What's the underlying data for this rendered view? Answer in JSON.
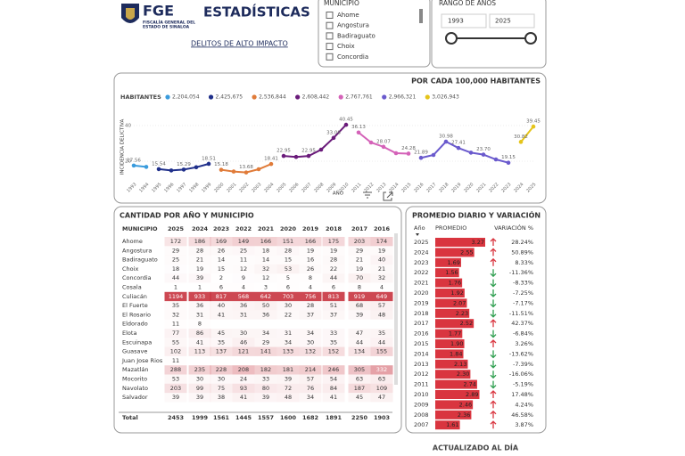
{
  "header": {
    "logo": "FGE",
    "logo_line1": "FISCALÍA GENERAL DEL",
    "logo_line2": "ESTADO DE SINALOA",
    "title": "ESTADÍSTICAS",
    "subtitle": "DELITOS DE ALTO IMPACTO"
  },
  "filters": {
    "municipio": {
      "label": "MUNICIPIO",
      "options": [
        "Ahome",
        "Angostura",
        "Badiraguato",
        "Choix",
        "Concordia"
      ]
    },
    "rango": {
      "label": "RANGO DE AÑOS",
      "from": "1993",
      "to": "2025"
    }
  },
  "chart_data": {
    "type": "line",
    "title": "POR CADA 100,000 HABITANTES",
    "legend_title": "HABITANTES",
    "ylabel": "INCIDENCIA DELICTIVA",
    "xlabel": "AÑO",
    "xlim": [
      1993,
      2025
    ],
    "xticks": [
      1993,
      1994,
      1995,
      1996,
      1997,
      1998,
      1999,
      2000,
      2001,
      2002,
      2003,
      2004,
      2005,
      2006,
      2007,
      2008,
      2009,
      2010,
      2011,
      2012,
      2013,
      2014,
      2015,
      2016,
      2017,
      2018,
      2019,
      2020,
      2021,
      2022,
      2023,
      2024,
      2025
    ],
    "ylim": [
      10,
      50
    ],
    "yticks": [
      20,
      40
    ],
    "grid": true,
    "series": [
      {
        "name": "2,204,054",
        "color": "#3a9bdc",
        "x": [
          1993,
          1994
        ],
        "values": [
          17.56,
          16.8
        ],
        "value_labels": [
          "17.56",
          null
        ]
      },
      {
        "name": "2,425,675",
        "color": "#1f2f8a",
        "x": [
          1995,
          1996,
          1997,
          1998,
          1999
        ],
        "values": [
          15.54,
          14.8,
          15.29,
          16.6,
          18.51
        ],
        "value_labels": [
          "15.54",
          null,
          "15.29",
          null,
          "18.51"
        ]
      },
      {
        "name": "2,536,844",
        "color": "#e07b39",
        "x": [
          2000,
          2001,
          2002,
          2003,
          2004
        ],
        "values": [
          15.18,
          14.2,
          13.68,
          15.5,
          18.41
        ],
        "value_labels": [
          "15.18",
          null,
          "13.68",
          null,
          "18.41"
        ]
      },
      {
        "name": "2,608,442",
        "color": "#6a1b7a",
        "x": [
          2005,
          2006,
          2007,
          2008,
          2009,
          2010
        ],
        "values": [
          22.95,
          22.4,
          22.95,
          26.5,
          33.08,
          40.45
        ],
        "value_labels": [
          "22.95",
          null,
          "22.95",
          null,
          "33.08",
          "40.45"
        ]
      },
      {
        "name": "2,767,761",
        "color": "#d462b8",
        "x": [
          2011,
          2012,
          2013,
          2014,
          2015
        ],
        "values": [
          36.13,
          30.5,
          28.07,
          24.5,
          24.28
        ],
        "value_labels": [
          "36.13",
          null,
          "28.07",
          null,
          "24.28"
        ]
      },
      {
        "name": "2,966,321",
        "color": "#6a5acd",
        "x": [
          2016,
          2017,
          2018,
          2019,
          2020,
          2021,
          2022,
          2023
        ],
        "values": [
          21.89,
          23.5,
          30.98,
          27.41,
          24.8,
          23.7,
          21.0,
          19.15
        ],
        "value_labels": [
          "21.89",
          null,
          "30.98",
          "27.41",
          null,
          "23.70",
          null,
          "19.15"
        ]
      },
      {
        "name": "3,026,943",
        "color": "#e5c41a",
        "x": [
          2024,
          2025
        ],
        "values": [
          30.82,
          39.45
        ],
        "value_labels": [
          "30.82",
          "39.45"
        ]
      }
    ]
  },
  "table": {
    "title": "CANTIDAD POR AÑO Y MUNICIPIO",
    "columns": [
      "MUNICIPIO",
      "2025",
      "2024",
      "2023",
      "2022",
      "2021",
      "2020",
      "2019",
      "2018",
      "2017",
      "2016"
    ],
    "rows": [
      [
        "Ahome",
        172,
        186,
        169,
        149,
        166,
        151,
        166,
        175,
        203,
        174
      ],
      [
        "Angostura",
        29,
        28,
        26,
        25,
        18,
        28,
        19,
        19,
        29,
        19
      ],
      [
        "Badiraguato",
        25,
        21,
        14,
        11,
        14,
        15,
        16,
        28,
        21,
        40
      ],
      [
        "Choix",
        18,
        19,
        15,
        12,
        32,
        53,
        26,
        22,
        19,
        21
      ],
      [
        "Concordia",
        44,
        39,
        2,
        9,
        12,
        5,
        8,
        44,
        70,
        32
      ],
      [
        "Cosala",
        1,
        1,
        6,
        4,
        3,
        6,
        4,
        6,
        8,
        4
      ],
      [
        "Culiacán",
        1194,
        933,
        817,
        568,
        642,
        703,
        756,
        813,
        919,
        649
      ],
      [
        "El Fuerte",
        35,
        36,
        40,
        36,
        50,
        30,
        28,
        51,
        68,
        57
      ],
      [
        "El Rosario",
        32,
        31,
        41,
        31,
        36,
        22,
        37,
        37,
        39,
        48
      ],
      [
        "Eldorado",
        11,
        8,
        null,
        null,
        null,
        null,
        null,
        null,
        null,
        null
      ],
      [
        "Elota",
        77,
        86,
        45,
        30,
        34,
        31,
        34,
        33,
        47,
        35
      ],
      [
        "Escuinapa",
        55,
        41,
        35,
        46,
        29,
        34,
        30,
        35,
        44,
        44
      ],
      [
        "Guasave",
        102,
        113,
        137,
        121,
        141,
        133,
        132,
        152,
        134,
        155
      ],
      [
        "Juan Jose Rios",
        11,
        null,
        null,
        null,
        null,
        null,
        null,
        null,
        null,
        null
      ],
      [
        "Mazatlán",
        288,
        235,
        228,
        208,
        182,
        181,
        214,
        246,
        305,
        332
      ],
      [
        "Mocorito",
        53,
        30,
        30,
        24,
        33,
        39,
        57,
        54,
        63,
        63
      ],
      [
        "Navolato",
        203,
        99,
        75,
        93,
        80,
        72,
        76,
        84,
        187,
        109
      ],
      [
        "Salvador",
        39,
        39,
        38,
        41,
        39,
        48,
        34,
        41,
        45,
        47
      ]
    ],
    "total": [
      "Total",
      2453,
      1999,
      1561,
      1445,
      1557,
      1600,
      1682,
      1891,
      2250,
      1903
    ]
  },
  "promedio": {
    "title": "PROMEDIO DIARIO Y VARIACIÓN",
    "columns": [
      "Año",
      "PROMEDIO",
      "VARIACIÓN %"
    ],
    "rows": [
      [
        "2025",
        "3.27",
        "28.24%"
      ],
      [
        "2024",
        "2.55",
        "50.89%"
      ],
      [
        "2023",
        "1.69",
        "8.33%"
      ],
      [
        "2022",
        "1.56",
        "-11.36%"
      ],
      [
        "2021",
        "1.76",
        "-8.33%"
      ],
      [
        "2020",
        "1.92",
        "-7.25%"
      ],
      [
        "2019",
        "2.07",
        "-7.17%"
      ],
      [
        "2018",
        "2.23",
        "-11.51%"
      ],
      [
        "2017",
        "2.52",
        "42.37%"
      ],
      [
        "2016",
        "1.77",
        "-6.84%"
      ],
      [
        "2015",
        "1.90",
        "3.26%"
      ],
      [
        "2014",
        "1.84",
        "-13.62%"
      ],
      [
        "2013",
        "2.13",
        "-7.39%"
      ],
      [
        "2012",
        "2.30",
        "-16.06%"
      ],
      [
        "2011",
        "2.74",
        "-5.19%"
      ],
      [
        "2010",
        "2.89",
        "17.48%"
      ],
      [
        "2009",
        "2.46",
        "4.24%"
      ],
      [
        "2008",
        "2.36",
        "46.58%"
      ],
      [
        "2007",
        "1.61",
        "3.87%"
      ]
    ]
  },
  "footer": "ACTUALIZADO AL DÍA"
}
